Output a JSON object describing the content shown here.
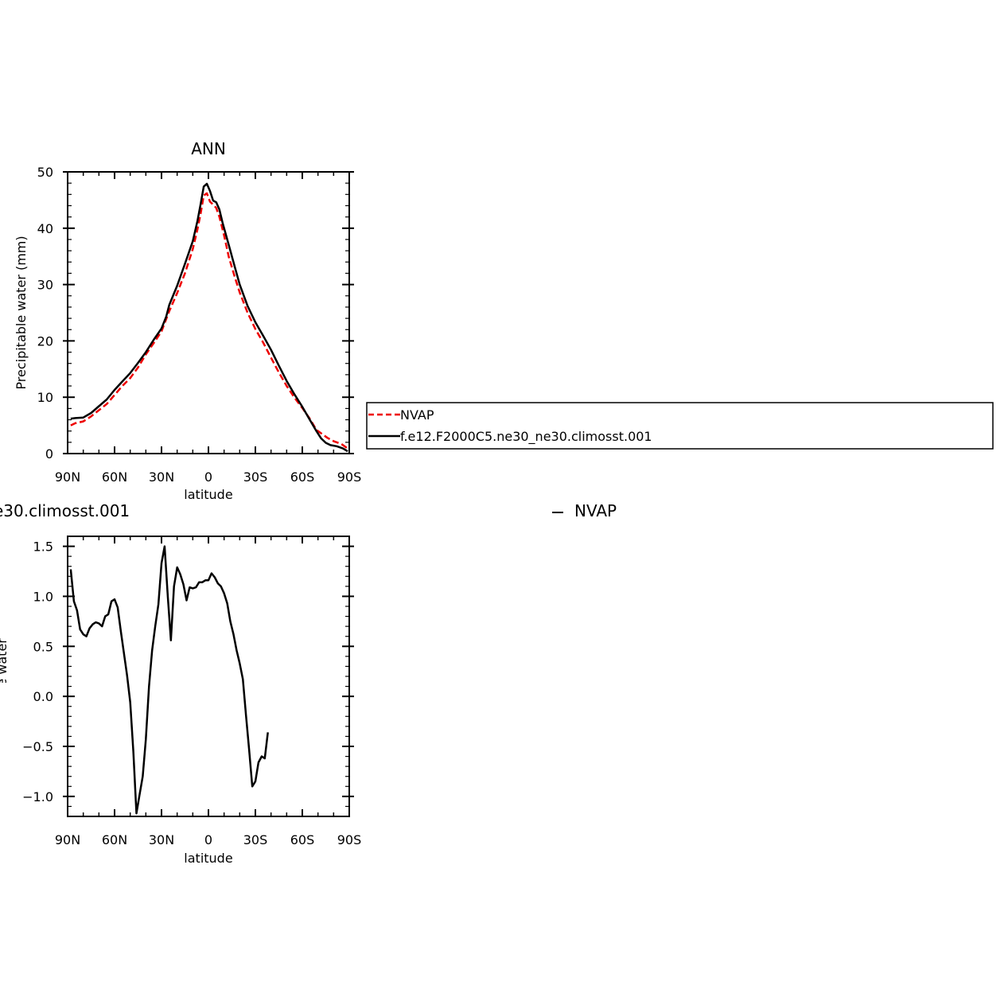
{
  "chart_data": [
    {
      "type": "line",
      "title": "ANN",
      "xlabel": "latitude",
      "ylabel": "Precipitable water (mm)",
      "xlim": [
        90,
        -90
      ],
      "ylim": [
        0,
        50
      ],
      "xticks": [
        {
          "value": 90,
          "label": "90N"
        },
        {
          "value": 60,
          "label": "60N"
        },
        {
          "value": 30,
          "label": "30N"
        },
        {
          "value": 0,
          "label": "0"
        },
        {
          "value": -30,
          "label": "30S"
        },
        {
          "value": -60,
          "label": "60S"
        },
        {
          "value": -90,
          "label": "90S"
        }
      ],
      "yticks": [
        {
          "value": 0,
          "label": "0"
        },
        {
          "value": 10,
          "label": "10"
        },
        {
          "value": 20,
          "label": "20"
        },
        {
          "value": 30,
          "label": "30"
        },
        {
          "value": 40,
          "label": "40"
        },
        {
          "value": 50,
          "label": "50"
        }
      ],
      "legend_position": "right",
      "series": [
        {
          "name": "NVAP",
          "color": "#ee0000",
          "dash": "dashed",
          "points": [
            [
              88,
              5.0
            ],
            [
              85,
              5.4
            ],
            [
              80,
              5.7
            ],
            [
              75,
              6.6
            ],
            [
              70,
              7.7
            ],
            [
              65,
              8.8
            ],
            [
              60,
              10.4
            ],
            [
              55,
              12.0
            ],
            [
              50,
              13.4
            ],
            [
              45,
              15.3
            ],
            [
              40,
              17.6
            ],
            [
              35,
              19.6
            ],
            [
              30,
              21.7
            ],
            [
              25,
              25.3
            ],
            [
              20,
              28.5
            ],
            [
              15,
              32.0
            ],
            [
              10,
              36.3
            ],
            [
              7,
              39.8
            ],
            [
              5,
              42.6
            ],
            [
              3,
              45.8
            ],
            [
              1,
              46.2
            ],
            [
              -1,
              44.7
            ],
            [
              -3,
              44.2
            ],
            [
              -5,
              43.6
            ],
            [
              -7,
              42.0
            ],
            [
              -10,
              38.7
            ],
            [
              -13,
              34.9
            ],
            [
              -17,
              31.2
            ],
            [
              -20,
              28.6
            ],
            [
              -25,
              25.0
            ],
            [
              -30,
              22.1
            ],
            [
              -35,
              19.7
            ],
            [
              -40,
              17.0
            ],
            [
              -45,
              14.4
            ],
            [
              -50,
              12.0
            ],
            [
              -55,
              9.9
            ],
            [
              -60,
              8.1
            ],
            [
              -65,
              6.1
            ],
            [
              -69,
              4.2
            ],
            [
              -72,
              3.6
            ],
            [
              -76,
              2.8
            ],
            [
              -80,
              2.2
            ],
            [
              -85,
              1.7
            ],
            [
              -89,
              0.9
            ]
          ]
        },
        {
          "name": "f.e12.F2000C5.ne30_ne30.climosst.001",
          "color": "#000000",
          "dash": "solid",
          "points": [
            [
              88,
              6.2
            ],
            [
              85,
              6.3
            ],
            [
              80,
              6.4
            ],
            [
              75,
              7.2
            ],
            [
              70,
              8.4
            ],
            [
              65,
              9.6
            ],
            [
              60,
              11.3
            ],
            [
              55,
              12.8
            ],
            [
              50,
              14.3
            ],
            [
              45,
              16.1
            ],
            [
              40,
              18.0
            ],
            [
              35,
              20.2
            ],
            [
              30,
              22.2
            ],
            [
              27,
              24.3
            ],
            [
              25,
              26.4
            ],
            [
              20,
              29.8
            ],
            [
              15,
              33.7
            ],
            [
              10,
              37.7
            ],
            [
              7,
              41.3
            ],
            [
              5,
              44.3
            ],
            [
              3,
              47.4
            ],
            [
              1,
              47.9
            ],
            [
              -1,
              46.6
            ],
            [
              -3,
              44.9
            ],
            [
              -5,
              44.6
            ],
            [
              -7,
              43.3
            ],
            [
              -9,
              41.0
            ],
            [
              -13,
              37.0
            ],
            [
              -17,
              33.0
            ],
            [
              -20,
              30.0
            ],
            [
              -25,
              26.2
            ],
            [
              -30,
              23.3
            ],
            [
              -35,
              20.9
            ],
            [
              -40,
              18.4
            ],
            [
              -45,
              15.6
            ],
            [
              -50,
              12.9
            ],
            [
              -55,
              10.5
            ],
            [
              -60,
              8.3
            ],
            [
              -65,
              5.9
            ],
            [
              -69,
              4.0
            ],
            [
              -72,
              2.7
            ],
            [
              -75,
              1.9
            ],
            [
              -78,
              1.5
            ],
            [
              -82,
              1.3
            ],
            [
              -86,
              0.9
            ],
            [
              -89,
              0.4
            ]
          ]
        }
      ]
    },
    {
      "type": "line",
      "title": "",
      "title_fragment": "e30.climosst.001",
      "legend_fragment": "NVAP",
      "xlabel": "latitude",
      "ylabel": "Precipitable water (mm)",
      "xlim": [
        90,
        -90
      ],
      "ylim": [
        -1.2,
        1.6
      ],
      "xticks": [
        {
          "value": 90,
          "label": "90N"
        },
        {
          "value": 60,
          "label": "60N"
        },
        {
          "value": 30,
          "label": "30N"
        },
        {
          "value": 0,
          "label": "0"
        },
        {
          "value": -30,
          "label": "30S"
        },
        {
          "value": -60,
          "label": "60S"
        },
        {
          "value": -90,
          "label": "90S"
        }
      ],
      "yticks": [
        {
          "value": -1.0,
          "label": "−1.0"
        },
        {
          "value": -0.5,
          "label": "−0.5"
        },
        {
          "value": 0.0,
          "label": "0.0"
        },
        {
          "value": 0.5,
          "label": "0.5"
        },
        {
          "value": 1.0,
          "label": "1.0"
        },
        {
          "value": 1.5,
          "label": "1.5"
        }
      ],
      "series": [
        {
          "color": "#000000",
          "dash": "solid",
          "points": [
            [
              88,
              1.27
            ],
            [
              86,
              0.95
            ],
            [
              84,
              0.86
            ],
            [
              82,
              0.67
            ],
            [
              80,
              0.62
            ],
            [
              78,
              0.6
            ],
            [
              76,
              0.68
            ],
            [
              74,
              0.72
            ],
            [
              72,
              0.74
            ],
            [
              70,
              0.73
            ],
            [
              68,
              0.7
            ],
            [
              66,
              0.8
            ],
            [
              64,
              0.82
            ],
            [
              62,
              0.95
            ],
            [
              60,
              0.97
            ],
            [
              58,
              0.89
            ],
            [
              56,
              0.65
            ],
            [
              54,
              0.43
            ],
            [
              52,
              0.21
            ],
            [
              50,
              -0.06
            ],
            [
              48,
              -0.55
            ],
            [
              46,
              -1.17
            ],
            [
              44,
              -0.98
            ],
            [
              42,
              -0.8
            ],
            [
              40,
              -0.43
            ],
            [
              38,
              0.1
            ],
            [
              36,
              0.46
            ],
            [
              34,
              0.7
            ],
            [
              32,
              0.92
            ],
            [
              30,
              1.33
            ],
            [
              28,
              1.5
            ],
            [
              26,
              1.0
            ],
            [
              24,
              0.56
            ],
            [
              22,
              1.1
            ],
            [
              20,
              1.29
            ],
            [
              18,
              1.22
            ],
            [
              16,
              1.12
            ],
            [
              14,
              0.96
            ],
            [
              12,
              1.09
            ],
            [
              10,
              1.08
            ],
            [
              8,
              1.09
            ],
            [
              6,
              1.14
            ],
            [
              4,
              1.14
            ],
            [
              2,
              1.16
            ],
            [
              0,
              1.16
            ],
            [
              -2,
              1.23
            ],
            [
              -4,
              1.19
            ],
            [
              -6,
              1.13
            ],
            [
              -8,
              1.1
            ],
            [
              -10,
              1.03
            ],
            [
              -12,
              0.93
            ],
            [
              -14,
              0.75
            ],
            [
              -16,
              0.62
            ],
            [
              -18,
              0.46
            ],
            [
              -20,
              0.33
            ],
            [
              -22,
              0.17
            ],
            [
              -24,
              -0.19
            ],
            [
              -26,
              -0.53
            ],
            [
              -28,
              -0.9
            ],
            [
              -30,
              -0.85
            ],
            [
              -32,
              -0.66
            ],
            [
              -34,
              -0.6
            ],
            [
              -36,
              -0.62
            ],
            [
              -38,
              -0.36
            ]
          ]
        }
      ]
    }
  ]
}
